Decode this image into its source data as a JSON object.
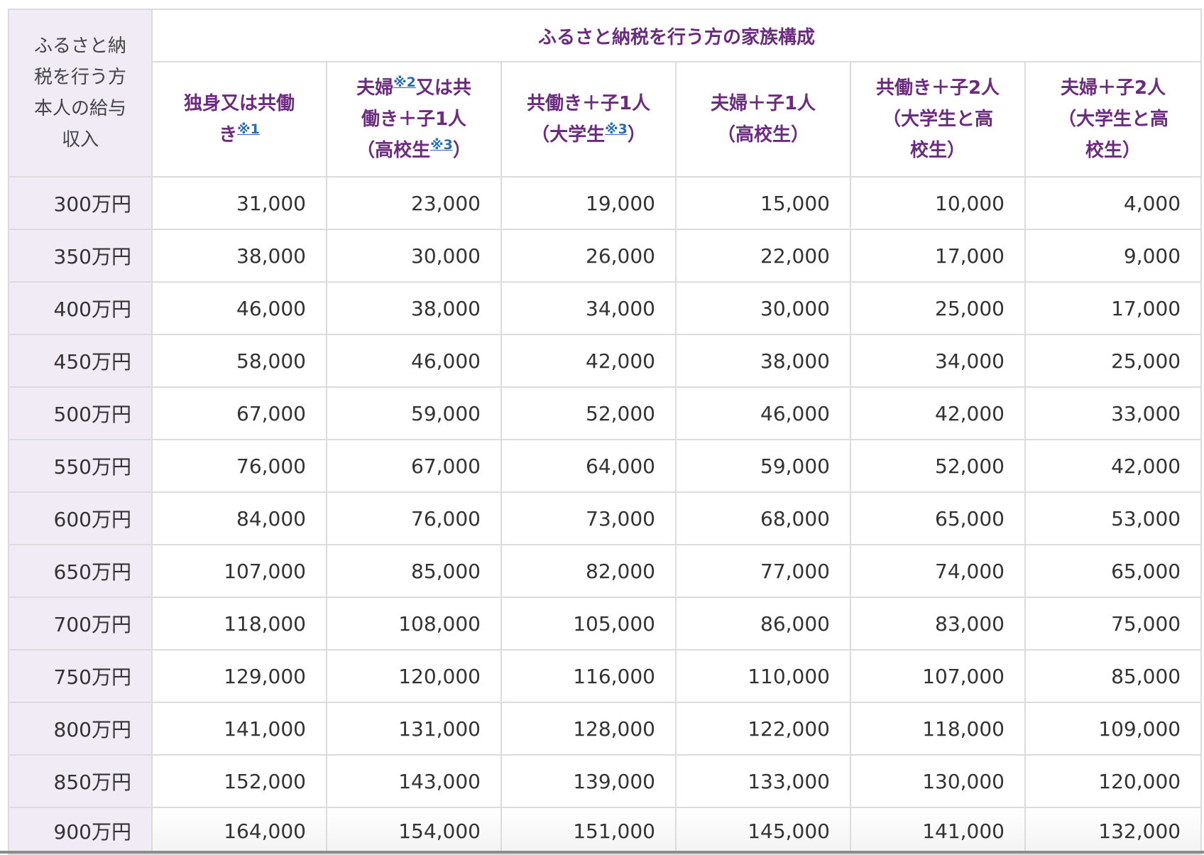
{
  "table": {
    "corner_header_lines": [
      "ふるさと納",
      "税を行う方",
      "本人の給与",
      "収入"
    ],
    "group_header": "ふるさと納税を行う方の家族構成",
    "columns": [
      {
        "parts": [
          {
            "t": "独身又は共働"
          },
          {
            "br": true
          },
          {
            "t": "き"
          },
          {
            "ref": "※1"
          }
        ]
      },
      {
        "parts": [
          {
            "t": "夫婦"
          },
          {
            "ref": "※2"
          },
          {
            "t": "又は共"
          },
          {
            "br": true
          },
          {
            "t": "働き＋子1人"
          },
          {
            "br": true
          },
          {
            "t": "（高校生"
          },
          {
            "ref": "※3"
          },
          {
            "t": "）"
          }
        ]
      },
      {
        "parts": [
          {
            "t": "共働き＋子1人"
          },
          {
            "br": true
          },
          {
            "t": "（大学生"
          },
          {
            "ref": "※3"
          },
          {
            "t": "）"
          }
        ]
      },
      {
        "parts": [
          {
            "t": "夫婦＋子1人"
          },
          {
            "br": true
          },
          {
            "t": "（高校生）"
          }
        ]
      },
      {
        "parts": [
          {
            "t": "共働き＋子2人"
          },
          {
            "br": true
          },
          {
            "t": "（大学生と高"
          },
          {
            "br": true
          },
          {
            "t": "校生）"
          }
        ]
      },
      {
        "parts": [
          {
            "t": "夫婦＋子2人"
          },
          {
            "br": true
          },
          {
            "t": "（大学生と高"
          },
          {
            "br": true
          },
          {
            "t": "校生）"
          }
        ]
      }
    ],
    "rows": [
      {
        "income": "300万円",
        "values": [
          "31,000",
          "23,000",
          "19,000",
          "15,000",
          "10,000",
          "4,000"
        ]
      },
      {
        "income": "350万円",
        "values": [
          "38,000",
          "30,000",
          "26,000",
          "22,000",
          "17,000",
          "9,000"
        ]
      },
      {
        "income": "400万円",
        "values": [
          "46,000",
          "38,000",
          "34,000",
          "30,000",
          "25,000",
          "17,000"
        ]
      },
      {
        "income": "450万円",
        "values": [
          "58,000",
          "46,000",
          "42,000",
          "38,000",
          "34,000",
          "25,000"
        ]
      },
      {
        "income": "500万円",
        "values": [
          "67,000",
          "59,000",
          "52,000",
          "46,000",
          "42,000",
          "33,000"
        ]
      },
      {
        "income": "550万円",
        "values": [
          "76,000",
          "67,000",
          "64,000",
          "59,000",
          "52,000",
          "42,000"
        ]
      },
      {
        "income": "600万円",
        "values": [
          "84,000",
          "76,000",
          "73,000",
          "68,000",
          "65,000",
          "53,000"
        ]
      },
      {
        "income": "650万円",
        "values": [
          "107,000",
          "85,000",
          "82,000",
          "77,000",
          "74,000",
          "65,000"
        ]
      },
      {
        "income": "700万円",
        "values": [
          "118,000",
          "108,000",
          "105,000",
          "86,000",
          "83,000",
          "75,000"
        ]
      },
      {
        "income": "750万円",
        "values": [
          "129,000",
          "120,000",
          "116,000",
          "110,000",
          "107,000",
          "85,000"
        ]
      },
      {
        "income": "800万円",
        "values": [
          "141,000",
          "131,000",
          "128,000",
          "122,000",
          "118,000",
          "109,000"
        ]
      },
      {
        "income": "850万円",
        "values": [
          "152,000",
          "143,000",
          "139,000",
          "133,000",
          "130,000",
          "120,000"
        ]
      },
      {
        "income": "900万円",
        "values": [
          "164,000",
          "154,000",
          "151,000",
          "145,000",
          "141,000",
          "132,000"
        ]
      }
    ]
  },
  "colors": {
    "header_text": "#6b2c7f",
    "row_header_bg": "#f1ebf6",
    "footnote_link": "#2a6ab5",
    "border": "#dcdcdc"
  }
}
